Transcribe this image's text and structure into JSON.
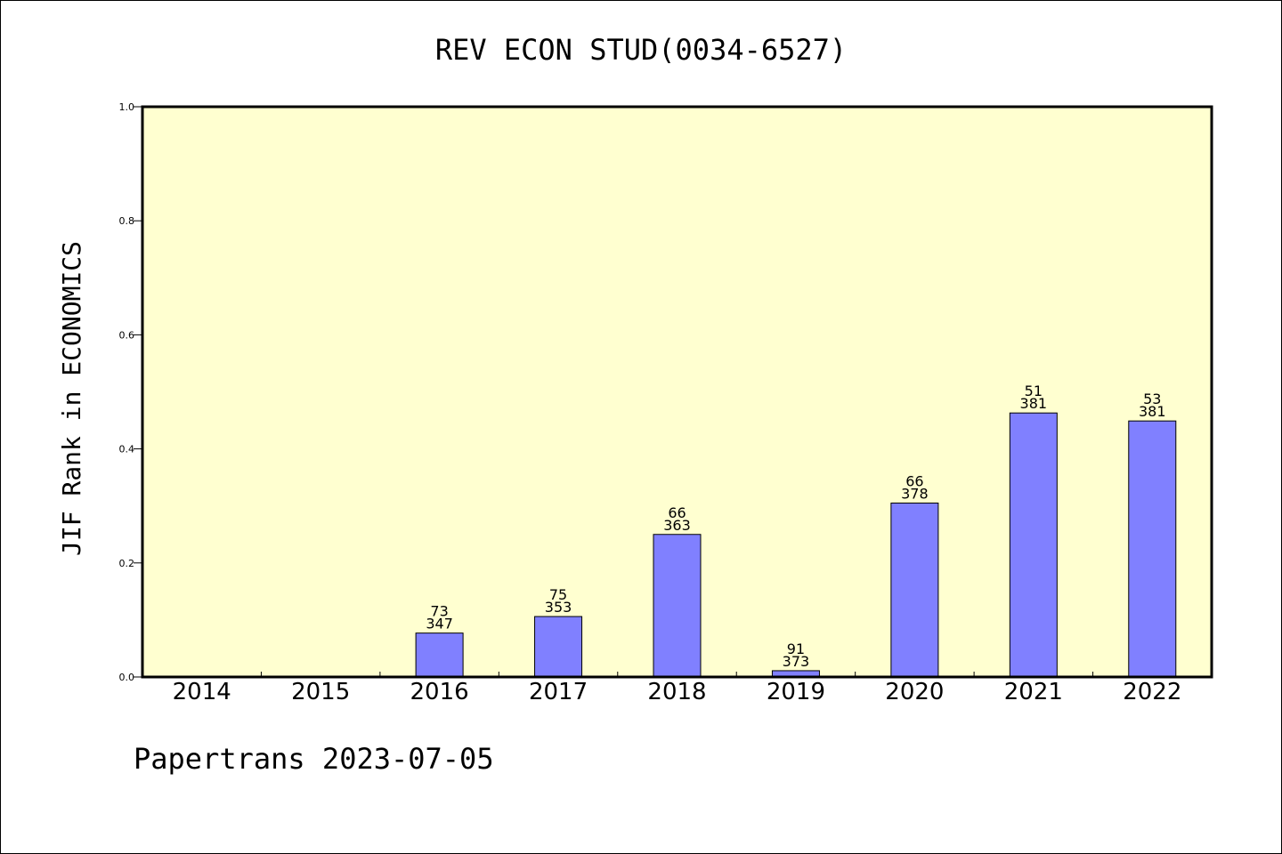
{
  "chart_data": {
    "type": "bar",
    "title": "REV ECON STUD(0034-6527)",
    "ylabel": "JIF Rank in ECONOMICS",
    "xlabel": "",
    "ylim": [
      0,
      1.0
    ],
    "yticks": [
      "0.0",
      "0.2",
      "0.4",
      "0.6",
      "0.8",
      "1.0"
    ],
    "categories": [
      "2014",
      "2015",
      "2016",
      "2017",
      "2018",
      "2019",
      "2020",
      "2021",
      "2022"
    ],
    "values": [
      null,
      null,
      0.077,
      0.106,
      0.25,
      0.011,
      0.305,
      0.463,
      0.449
    ],
    "labels": [
      null,
      null,
      {
        "rank": "73",
        "total": "347"
      },
      {
        "rank": "75",
        "total": "353"
      },
      {
        "rank": "66",
        "total": "363"
      },
      {
        "rank": "91",
        "total": "373"
      },
      {
        "rank": "66",
        "total": "378"
      },
      {
        "rank": "51",
        "total": "381"
      },
      {
        "rank": "53",
        "total": "381"
      }
    ],
    "grid": false,
    "colors": {
      "plot_background": "#ffffd0",
      "bar_fill": "#8080ff",
      "bar_stroke": "#000000"
    }
  },
  "footer": "Papertrans 2023-07-05"
}
